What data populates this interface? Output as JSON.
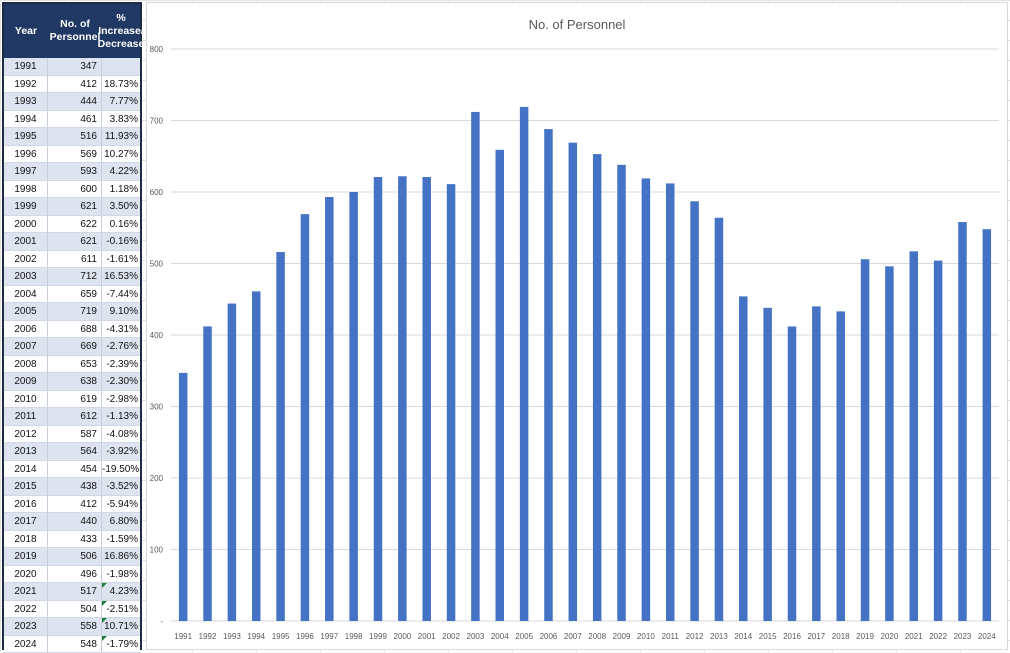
{
  "table": {
    "headers": {
      "year": "Year",
      "personnel": "No. of\nPersonnel",
      "change": "%\nIncrease/\nDecrease"
    },
    "rows": [
      {
        "year": "1991",
        "personnel": "347",
        "change": "",
        "flag": false
      },
      {
        "year": "1992",
        "personnel": "412",
        "change": "18.73%",
        "flag": false
      },
      {
        "year": "1993",
        "personnel": "444",
        "change": "7.77%",
        "flag": false
      },
      {
        "year": "1994",
        "personnel": "461",
        "change": "3.83%",
        "flag": false
      },
      {
        "year": "1995",
        "personnel": "516",
        "change": "11.93%",
        "flag": false
      },
      {
        "year": "1996",
        "personnel": "569",
        "change": "10.27%",
        "flag": false
      },
      {
        "year": "1997",
        "personnel": "593",
        "change": "4.22%",
        "flag": false
      },
      {
        "year": "1998",
        "personnel": "600",
        "change": "1.18%",
        "flag": false
      },
      {
        "year": "1999",
        "personnel": "621",
        "change": "3.50%",
        "flag": false
      },
      {
        "year": "2000",
        "personnel": "622",
        "change": "0.16%",
        "flag": false
      },
      {
        "year": "2001",
        "personnel": "621",
        "change": "-0.16%",
        "flag": false
      },
      {
        "year": "2002",
        "personnel": "611",
        "change": "-1.61%",
        "flag": false
      },
      {
        "year": "2003",
        "personnel": "712",
        "change": "16.53%",
        "flag": false
      },
      {
        "year": "2004",
        "personnel": "659",
        "change": "-7.44%",
        "flag": false
      },
      {
        "year": "2005",
        "personnel": "719",
        "change": "9.10%",
        "flag": false
      },
      {
        "year": "2006",
        "personnel": "688",
        "change": "-4.31%",
        "flag": false
      },
      {
        "year": "2007",
        "personnel": "669",
        "change": "-2.76%",
        "flag": false
      },
      {
        "year": "2008",
        "personnel": "653",
        "change": "-2.39%",
        "flag": false
      },
      {
        "year": "2009",
        "personnel": "638",
        "change": "-2.30%",
        "flag": false
      },
      {
        "year": "2010",
        "personnel": "619",
        "change": "-2.98%",
        "flag": false
      },
      {
        "year": "2011",
        "personnel": "612",
        "change": "-1.13%",
        "flag": false
      },
      {
        "year": "2012",
        "personnel": "587",
        "change": "-4.08%",
        "flag": false
      },
      {
        "year": "2013",
        "personnel": "564",
        "change": "-3.92%",
        "flag": false
      },
      {
        "year": "2014",
        "personnel": "454",
        "change": "-19.50%",
        "flag": false
      },
      {
        "year": "2015",
        "personnel": "438",
        "change": "-3.52%",
        "flag": false
      },
      {
        "year": "2016",
        "personnel": "412",
        "change": "-5.94%",
        "flag": false
      },
      {
        "year": "2017",
        "personnel": "440",
        "change": "6.80%",
        "flag": false
      },
      {
        "year": "2018",
        "personnel": "433",
        "change": "-1.59%",
        "flag": false
      },
      {
        "year": "2019",
        "personnel": "506",
        "change": "16.86%",
        "flag": false
      },
      {
        "year": "2020",
        "personnel": "496",
        "change": "-1.98%",
        "flag": false
      },
      {
        "year": "2021",
        "personnel": "517",
        "change": "4.23%",
        "flag": true
      },
      {
        "year": "2022",
        "personnel": "504",
        "change": "-2.51%",
        "flag": true
      },
      {
        "year": "2023",
        "personnel": "558",
        "change": "10.71%",
        "flag": true
      },
      {
        "year": "2024",
        "personnel": "548",
        "change": "-1.79%",
        "flag": true
      }
    ]
  },
  "chart_data": {
    "type": "bar",
    "title": "No. of Personnel",
    "xlabel": "",
    "ylabel": "",
    "categories": [
      "1991",
      "1992",
      "1993",
      "1994",
      "1995",
      "1996",
      "1997",
      "1998",
      "1999",
      "2000",
      "2001",
      "2002",
      "2003",
      "2004",
      "2005",
      "2006",
      "2007",
      "2008",
      "2009",
      "2010",
      "2011",
      "2012",
      "2013",
      "2014",
      "2015",
      "2016",
      "2017",
      "2018",
      "2019",
      "2020",
      "2021",
      "2022",
      "2023",
      "2024"
    ],
    "values": [
      347,
      412,
      444,
      461,
      516,
      569,
      593,
      600,
      621,
      622,
      621,
      611,
      712,
      659,
      719,
      688,
      669,
      653,
      638,
      619,
      612,
      587,
      564,
      454,
      438,
      412,
      440,
      433,
      506,
      496,
      517,
      504,
      558,
      548
    ],
    "ylim": [
      0,
      800
    ],
    "yticks": [
      0,
      100,
      200,
      300,
      400,
      500,
      600,
      700,
      800
    ],
    "ytick_labels": [
      "-",
      "100",
      "200",
      "300",
      "400",
      "500",
      "600",
      "700",
      "800"
    ],
    "grid": true,
    "legend": "none",
    "bar_color": "#4472c4",
    "grid_color": "#d9d9d9"
  }
}
